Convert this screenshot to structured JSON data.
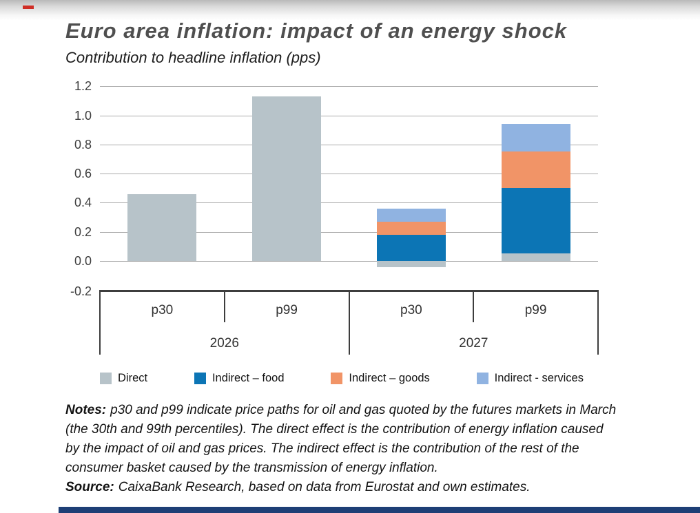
{
  "chart_data": {
    "type": "bar",
    "stacked": true,
    "title": "Euro area inflation: impact of an energy shock",
    "subtitle": "Contribution to headline inflation (pps)",
    "ylim": [
      -0.2,
      1.2
    ],
    "grid": true,
    "legend_position": "bottom",
    "yticks": [
      {
        "value": 1.2,
        "label": "1.2"
      },
      {
        "value": 1.0,
        "label": "1.0"
      },
      {
        "value": 0.8,
        "label": "0.8"
      },
      {
        "value": 0.6,
        "label": "0.6"
      },
      {
        "value": 0.4,
        "label": "0.4"
      },
      {
        "value": 0.2,
        "label": "0.2"
      },
      {
        "value": 0.0,
        "label": "0.0"
      },
      {
        "value": -0.2,
        "label": "-0.2"
      }
    ],
    "series_order": [
      "direct",
      "food",
      "goods",
      "services"
    ],
    "legend": [
      {
        "key": "direct",
        "label": "Direct",
        "color": "#b7c3c9"
      },
      {
        "key": "food",
        "label": "Indirect – food",
        "color": "#0c75b5"
      },
      {
        "key": "goods",
        "label": "Indirect – goods",
        "color": "#f19467"
      },
      {
        "key": "services",
        "label": "Indirect - services",
        "color": "#90b3e1"
      }
    ],
    "groups": [
      {
        "year": "2026",
        "bars": [
          {
            "label": "p30",
            "segments": {
              "direct": 0.46
            }
          },
          {
            "label": "p99",
            "segments": {
              "direct": 1.13
            }
          }
        ]
      },
      {
        "year": "2027",
        "bars": [
          {
            "label": "p30",
            "segments": {
              "direct": -0.04,
              "food": 0.18,
              "goods": 0.09,
              "services": 0.09
            }
          },
          {
            "label": "p99",
            "segments": {
              "direct": 0.05,
              "food": 0.45,
              "goods": 0.25,
              "services": 0.19
            }
          }
        ]
      }
    ]
  },
  "notes": {
    "label": "Notes:",
    "lines": [
      "p30 and p99 indicate price paths for oil and gas quoted by the futures markets in March",
      "(the 30th and 99th percentiles). The direct effect is the contribution of energy inflation caused",
      "by the impact of oil and gas prices. The indirect effect is the contribution of the rest of the",
      "consumer basket caused by the transmission of energy inflation."
    ],
    "source_label": "Source:",
    "source_text": "CaixaBank Research, based on data from Eurostat and own estimates."
  },
  "decor": {
    "accent_red": "#cf2e26",
    "footer_navy": "#1e3f76"
  }
}
